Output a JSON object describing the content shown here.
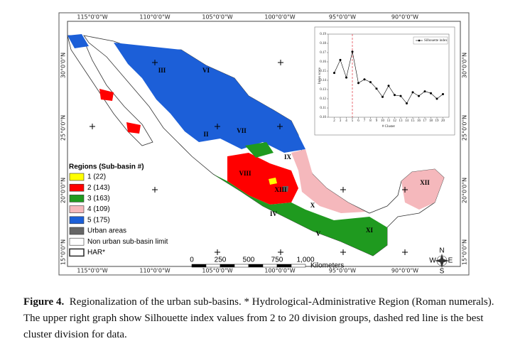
{
  "map": {
    "lon_labels": [
      "115°0'0\"W",
      "110°0'0\"W",
      "105°0'0\"W",
      "100°0'0\"W",
      "95°0'0\"W",
      "90°0'0\"W"
    ],
    "lat_labels": [
      "30°0'0\"N",
      "25°0'0\"N",
      "20°0'0\"N",
      "15°0'0\"N"
    ],
    "regions": [
      "III",
      "VI",
      "II",
      "VII",
      "IX",
      "VIII",
      "XIII",
      "IV",
      "X",
      "V",
      "XI",
      "XII"
    ],
    "legend": {
      "title": "Regions (Sub-basin #)",
      "items": [
        {
          "label": "1 (22)",
          "color": "#ffff00"
        },
        {
          "label": "2 (143)",
          "color": "#ff0000"
        },
        {
          "label": "3 (163)",
          "color": "#1f9a1f"
        },
        {
          "label": "4 (109)",
          "color": "#f5b8bc"
        },
        {
          "label": "5 (175)",
          "color": "#1c5fd8"
        },
        {
          "label": "Urban areas",
          "color": "#666666"
        },
        {
          "label": "Non urban sub-basin limit",
          "color": "#ffffff"
        },
        {
          "label": "HAR*",
          "color": "#ffffff"
        }
      ]
    },
    "scale": {
      "labels": [
        "0",
        "250",
        "500",
        "750",
        "1,000"
      ],
      "unit": "Kilometers"
    },
    "compass": [
      "N",
      "S",
      "E",
      "W"
    ]
  },
  "chart_data": {
    "type": "line",
    "y_label": "Index score",
    "x_label": "# Cluster",
    "x": [
      2,
      3,
      4,
      5,
      6,
      7,
      8,
      9,
      10,
      11,
      12,
      13,
      14,
      15,
      16,
      17,
      18,
      19,
      20
    ],
    "series": [
      {
        "name": "Silhouette index",
        "color": "#000000",
        "values": [
          0.148,
          0.162,
          0.143,
          0.171,
          0.137,
          0.141,
          0.138,
          0.131,
          0.122,
          0.134,
          0.124,
          0.123,
          0.115,
          0.127,
          0.123,
          0.128,
          0.126,
          0.12,
          0.125
        ]
      }
    ],
    "xlim": [
      1,
      21
    ],
    "xticks": [
      2,
      3,
      4,
      5,
      6,
      7,
      8,
      9,
      10,
      11,
      12,
      13,
      14,
      15,
      16,
      17,
      18,
      19,
      20
    ],
    "ylim": [
      0.1,
      0.19
    ],
    "yticks": [
      {
        "value": 0.1,
        "label": "0.10"
      },
      0.11,
      0.12,
      0.13,
      0.14,
      0.15,
      0.16,
      0.17,
      0.18,
      0.19
    ],
    "threshold_x": 5,
    "threshold_color": "#e0303a",
    "legend": "upper right"
  },
  "caption": {
    "label": "Figure 4.",
    "text": "Regionalization of the urban sub-basins. * Hydrological-Administrative Region (Roman numerals). The upper right graph show Silhouette index values from 2 to 20 division groups, dashed red line is the best cluster division for data."
  }
}
